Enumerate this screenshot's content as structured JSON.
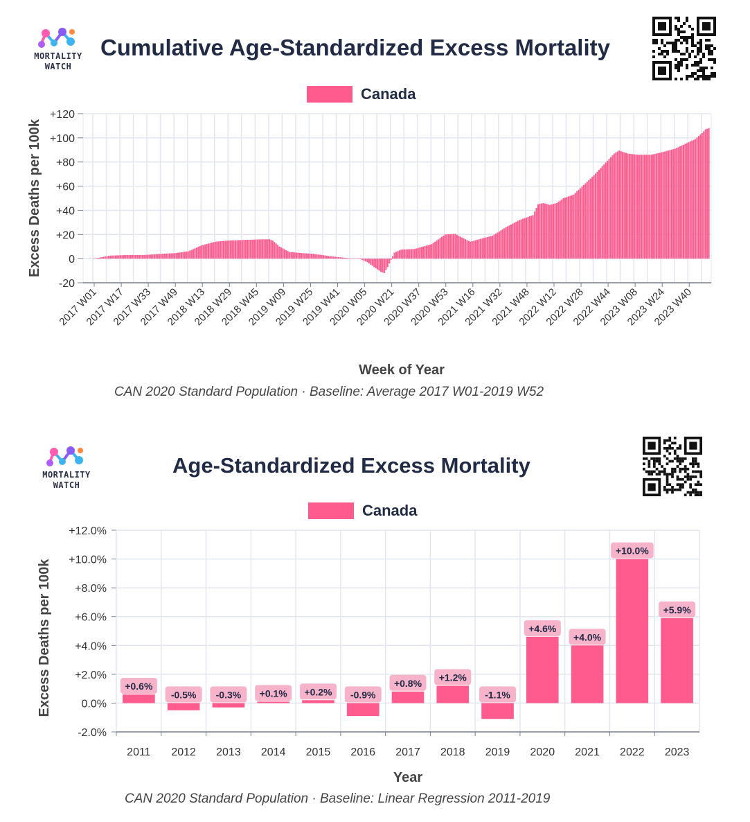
{
  "brand": {
    "name_line1": "MORTALITY",
    "name_line2": "WATCH"
  },
  "colors": {
    "series": "#ff5b8f",
    "label_bg": "#f7b3c9",
    "grid": "#e2e6f0",
    "axis": "#7a8094"
  },
  "chart1": {
    "title": "Cumulative Age-Standardized Excess Mortality",
    "legend": "Canada",
    "caption": "CAN 2020 Standard Population · Baseline: Average 2017 W01-2019 W52"
  },
  "chart2": {
    "title": "Age-Standardized Excess Mortality",
    "legend": "Canada",
    "caption": "CAN 2020 Standard Population · Baseline: Linear Regression 2011-2019"
  },
  "chart_data": [
    {
      "type": "bar",
      "title": "Cumulative Age-Standardized Excess Mortality",
      "series_name": "Canada",
      "xlabel": "Week of Year",
      "ylabel": "Excess Deaths per 100k",
      "ylim": [
        -20,
        120
      ],
      "yticks": [
        "-20",
        "0",
        "+20",
        "+40",
        "+60",
        "+80",
        "+100",
        "+120"
      ],
      "ytick_values": [
        -20,
        0,
        20,
        40,
        60,
        80,
        100,
        120
      ],
      "xtick_labels": [
        "2017 W01",
        "2017 W17",
        "2017 W33",
        "2017 W49",
        "2018 W13",
        "2018 W29",
        "2018 W45",
        "2019 W09",
        "2019 W25",
        "2019 W41",
        "2020 W05",
        "2020 W21",
        "2020 W37",
        "2020 W53",
        "2021 W16",
        "2021 W32",
        "2021 W48",
        "2022 W12",
        "2022 W28",
        "2022 W44",
        "2023 W08",
        "2023 W24",
        "2023 W40"
      ],
      "xtick_index": [
        0,
        16,
        32,
        48,
        64,
        80,
        96,
        112,
        128,
        144,
        160,
        176,
        192,
        208,
        224,
        240,
        256,
        272,
        288,
        304,
        320,
        336,
        352
      ],
      "n_weeks": 365,
      "keyframes": [
        [
          0,
          0
        ],
        [
          4,
          1
        ],
        [
          10,
          2.5
        ],
        [
          20,
          3
        ],
        [
          30,
          3
        ],
        [
          40,
          4
        ],
        [
          48,
          4.5
        ],
        [
          56,
          6
        ],
        [
          64,
          11
        ],
        [
          72,
          14
        ],
        [
          80,
          15
        ],
        [
          90,
          15.5
        ],
        [
          100,
          16
        ],
        [
          104,
          16
        ],
        [
          106,
          15
        ],
        [
          110,
          10
        ],
        [
          116,
          5.5
        ],
        [
          124,
          4.5
        ],
        [
          130,
          4
        ],
        [
          140,
          2
        ],
        [
          150,
          0.5
        ],
        [
          158,
          -0.5
        ],
        [
          162,
          -3
        ],
        [
          166,
          -7
        ],
        [
          170,
          -11
        ],
        [
          172,
          -12
        ],
        [
          174,
          -7
        ],
        [
          176,
          -1
        ],
        [
          178,
          5
        ],
        [
          182,
          7.5
        ],
        [
          190,
          8
        ],
        [
          200,
          12
        ],
        [
          204,
          16
        ],
        [
          208,
          20
        ],
        [
          214,
          20.5
        ],
        [
          220,
          16
        ],
        [
          223,
          14
        ],
        [
          228,
          16
        ],
        [
          236,
          19
        ],
        [
          244,
          26
        ],
        [
          252,
          32
        ],
        [
          258,
          35
        ],
        [
          260,
          36
        ],
        [
          263,
          45
        ],
        [
          266,
          46
        ],
        [
          270,
          44.5
        ],
        [
          274,
          46
        ],
        [
          278,
          50
        ],
        [
          284,
          53
        ],
        [
          290,
          61
        ],
        [
          296,
          69
        ],
        [
          302,
          78
        ],
        [
          308,
          87
        ],
        [
          311,
          89.5
        ],
        [
          316,
          87
        ],
        [
          322,
          86
        ],
        [
          330,
          86
        ],
        [
          336,
          88
        ],
        [
          344,
          91
        ],
        [
          350,
          95
        ],
        [
          356,
          99
        ],
        [
          360,
          104
        ],
        [
          362,
          107
        ],
        [
          364,
          108
        ]
      ]
    },
    {
      "type": "bar",
      "title": "Age-Standardized Excess Mortality",
      "series_name": "Canada",
      "xlabel": "Year",
      "ylabel": "Excess Deaths per 100k",
      "ylim": [
        -2,
        12
      ],
      "yticks": [
        "-2.0%",
        "0.0%",
        "+2.0%",
        "+4.0%",
        "+6.0%",
        "+8.0%",
        "+10.0%",
        "+12.0%"
      ],
      "ytick_values": [
        -2,
        0,
        2,
        4,
        6,
        8,
        10,
        12
      ],
      "categories": [
        "2011",
        "2012",
        "2013",
        "2014",
        "2015",
        "2016",
        "2017",
        "2018",
        "2019",
        "2020",
        "2021",
        "2022",
        "2023"
      ],
      "values": [
        0.6,
        -0.5,
        -0.3,
        0.1,
        0.2,
        -0.9,
        0.8,
        1.2,
        -1.1,
        4.6,
        4.0,
        10.0,
        5.9
      ],
      "data_labels": [
        "+0.6%",
        "-0.5%",
        "-0.3%",
        "+0.1%",
        "+0.2%",
        "-0.9%",
        "+0.8%",
        "+1.2%",
        "-1.1%",
        "+4.6%",
        "+4.0%",
        "+10.0%",
        "+5.9%"
      ]
    }
  ]
}
